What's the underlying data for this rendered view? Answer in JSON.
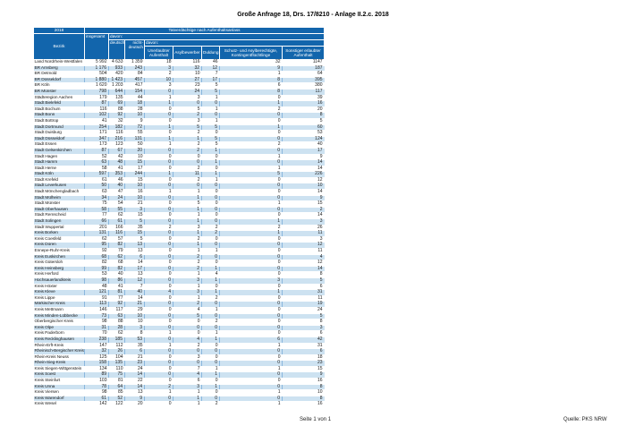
{
  "page": {
    "title": "Große Anfrage 18, Drs. 17/8210 - Anlage II.2.c. 2018",
    "footer": {
      "page_label": "Seite 1 von 1",
      "source_label": "Quelle: PKS NRW"
    }
  },
  "colors": {
    "header_blue": "#1265ac",
    "row_alt": "#cde2f1",
    "separator_blue": "#8ab7de"
  },
  "table": {
    "year": "2018",
    "bezirk_label": "Bezirk",
    "span_title": "Tatverdächtige nach Aufenthaltsanlass",
    "insgesamt_label": "insgesamt",
    "davon1_label": "davon:",
    "deutsch_label": "deutsch",
    "nichtdeutsch_label": "nicht-deutsch",
    "davon2_label": "davon:",
    "sub_headers": [
      "Unerlaubter Aufenthalt",
      "Asylbewerber",
      "Duldung",
      "Schutz- und Asylberechtigte, Kontingentflüchtlinge",
      "Sonstiger erlaubter Aufenthalt"
    ],
    "rows": [
      {
        "bezirk": "Land Nordrhein-Westfalen",
        "values": [
          "5 992",
          "4 633",
          "1 359",
          "18",
          "116",
          "46",
          "32",
          "1147"
        ]
      },
      {
        "bezirk": "BR Arnsberg",
        "values": [
          "1 176",
          "933",
          "243",
          "3",
          "32",
          "12",
          "9",
          "187"
        ]
      },
      {
        "bezirk": "BR Detmold",
        "values": [
          "504",
          "420",
          "84",
          "2",
          "10",
          "7",
          "1",
          "64"
        ]
      },
      {
        "bezirk": "BR Düsseldorf",
        "values": [
          "1 880",
          "1 423",
          "457",
          "10",
          "27",
          "17",
          "8",
          "395"
        ]
      },
      {
        "bezirk": "BR Köln",
        "values": [
          "1 620",
          "1 203",
          "417",
          "3",
          "23",
          "5",
          "6",
          "380"
        ]
      },
      {
        "bezirk": "BR Münster",
        "values": [
          "798",
          "644",
          "154",
          "0",
          "24",
          "5",
          "8",
          "117"
        ]
      },
      {
        "bezirk": "Städteregion Aachen",
        "values": [
          "179",
          "135",
          "44",
          "1",
          "3",
          "1",
          "0",
          "39"
        ]
      },
      {
        "bezirk": "Stadt Bielefeld",
        "values": [
          "87",
          "69",
          "18",
          "1",
          "0",
          "0",
          "1",
          "16"
        ]
      },
      {
        "bezirk": "Stadt Bochum",
        "values": [
          "116",
          "88",
          "28",
          "0",
          "5",
          "1",
          "2",
          "20"
        ]
      },
      {
        "bezirk": "Stadt Bonn",
        "values": [
          "102",
          "92",
          "10",
          "0",
          "2",
          "0",
          "0",
          "8"
        ]
      },
      {
        "bezirk": "Stadt Bottrop",
        "values": [
          "41",
          "32",
          "9",
          "0",
          "3",
          "1",
          "0",
          "5"
        ]
      },
      {
        "bezirk": "Stadt Dortmund",
        "values": [
          "254",
          "182",
          "72",
          "1",
          "5",
          "5",
          "1",
          "60"
        ]
      },
      {
        "bezirk": "Stadt Duisburg",
        "values": [
          "171",
          "116",
          "55",
          "0",
          "2",
          "0",
          "0",
          "53"
        ]
      },
      {
        "bezirk": "Stadt Düsseldorf",
        "values": [
          "347",
          "216",
          "131",
          "1",
          "1",
          "5",
          "0",
          "124"
        ]
      },
      {
        "bezirk": "Stadt Essen",
        "values": [
          "173",
          "123",
          "50",
          "1",
          "2",
          "5",
          "2",
          "40"
        ]
      },
      {
        "bezirk": "Stadt Gelsenkirchen",
        "values": [
          "87",
          "67",
          "20",
          "0",
          "2",
          "1",
          "0",
          "17"
        ]
      },
      {
        "bezirk": "Stadt Hagen",
        "values": [
          "52",
          "42",
          "10",
          "0",
          "0",
          "0",
          "1",
          "9"
        ]
      },
      {
        "bezirk": "Stadt Hamm",
        "values": [
          "63",
          "48",
          "15",
          "0",
          "0",
          "1",
          "0",
          "14"
        ]
      },
      {
        "bezirk": "Stadt Herne",
        "values": [
          "58",
          "41",
          "17",
          "0",
          "2",
          "0",
          "1",
          "14"
        ]
      },
      {
        "bezirk": "Stadt Köln",
        "values": [
          "597",
          "353",
          "244",
          "1",
          "11",
          "1",
          "5",
          "226"
        ]
      },
      {
        "bezirk": "Stadt Krefeld",
        "values": [
          "61",
          "46",
          "15",
          "0",
          "2",
          "1",
          "0",
          "12"
        ]
      },
      {
        "bezirk": "Stadt Leverkusen",
        "values": [
          "50",
          "40",
          "10",
          "0",
          "0",
          "0",
          "0",
          "10"
        ]
      },
      {
        "bezirk": "Stadt Mönchengladbach",
        "values": [
          "63",
          "47",
          "16",
          "1",
          "1",
          "0",
          "0",
          "14"
        ]
      },
      {
        "bezirk": "Stadt Mülheim",
        "values": [
          "34",
          "24",
          "10",
          "0",
          "1",
          "0",
          "0",
          "9"
        ]
      },
      {
        "bezirk": "Stadt Münster",
        "values": [
          "75",
          "54",
          "21",
          "0",
          "5",
          "0",
          "1",
          "15"
        ]
      },
      {
        "bezirk": "Stadt Oberhausen",
        "values": [
          "58",
          "55",
          "3",
          "0",
          "1",
          "0",
          "0",
          "2"
        ]
      },
      {
        "bezirk": "Stadt Remscheid",
        "values": [
          "77",
          "62",
          "15",
          "0",
          "1",
          "0",
          "0",
          "14"
        ]
      },
      {
        "bezirk": "Stadt Solingen",
        "values": [
          "66",
          "61",
          "5",
          "0",
          "1",
          "0",
          "1",
          "3"
        ]
      },
      {
        "bezirk": "Stadt Wuppertal",
        "values": [
          "201",
          "166",
          "35",
          "2",
          "3",
          "2",
          "2",
          "26"
        ]
      },
      {
        "bezirk": "Kreis Borken",
        "values": [
          "131",
          "116",
          "15",
          "0",
          "1",
          "2",
          "1",
          "11"
        ]
      },
      {
        "bezirk": "Kreis Coesfeld",
        "values": [
          "62",
          "57",
          "5",
          "0",
          "2",
          "0",
          "0",
          "3"
        ]
      },
      {
        "bezirk": "Kreis Düren",
        "values": [
          "95",
          "82",
          "13",
          "0",
          "1",
          "0",
          "0",
          "12"
        ]
      },
      {
        "bezirk": "Ennepe-Ruhr-Kreis",
        "values": [
          "92",
          "79",
          "13",
          "0",
          "1",
          "1",
          "0",
          "11"
        ]
      },
      {
        "bezirk": "Kreis Euskirchen",
        "values": [
          "68",
          "62",
          "6",
          "0",
          "2",
          "0",
          "0",
          "4"
        ]
      },
      {
        "bezirk": "Kreis Gütersloh",
        "values": [
          "82",
          "68",
          "14",
          "0",
          "2",
          "0",
          "0",
          "12"
        ]
      },
      {
        "bezirk": "Kreis Heinsberg",
        "values": [
          "99",
          "82",
          "17",
          "0",
          "2",
          "1",
          "0",
          "14"
        ]
      },
      {
        "bezirk": "Kreis Herford",
        "values": [
          "53",
          "40",
          "13",
          "0",
          "1",
          "4",
          "0",
          "8"
        ]
      },
      {
        "bezirk": "Hochsauerlandkreis",
        "values": [
          "98",
          "86",
          "12",
          "0",
          "3",
          "1",
          "3",
          "5"
        ]
      },
      {
        "bezirk": "Kreis Höxter",
        "values": [
          "48",
          "41",
          "7",
          "0",
          "1",
          "0",
          "0",
          "6"
        ]
      },
      {
        "bezirk": "Kreis Kleve",
        "values": [
          "121",
          "81",
          "40",
          "4",
          "3",
          "1",
          "1",
          "31"
        ]
      },
      {
        "bezirk": "Kreis Lippe",
        "values": [
          "91",
          "77",
          "14",
          "0",
          "1",
          "2",
          "0",
          "11"
        ]
      },
      {
        "bezirk": "Märkischer Kreis",
        "values": [
          "113",
          "92",
          "21",
          "0",
          "2",
          "0",
          "0",
          "19"
        ]
      },
      {
        "bezirk": "Kreis Mettmann",
        "values": [
          "146",
          "117",
          "29",
          "0",
          "4",
          "1",
          "0",
          "24"
        ]
      },
      {
        "bezirk": "Kreis Minden-Lübbecke",
        "values": [
          "73",
          "63",
          "10",
          "0",
          "5",
          "0",
          "0",
          "5"
        ]
      },
      {
        "bezirk": "Oberbergischer Kreis",
        "values": [
          "98",
          "88",
          "10",
          "0",
          "0",
          "2",
          "0",
          "8"
        ]
      },
      {
        "bezirk": "Kreis Olpe",
        "values": [
          "31",
          "28",
          "3",
          "0",
          "0",
          "0",
          "0",
          "3"
        ]
      },
      {
        "bezirk": "Kreis Paderborn",
        "values": [
          "70",
          "62",
          "8",
          "1",
          "0",
          "1",
          "0",
          "6"
        ]
      },
      {
        "bezirk": "Kreis Recklinghausen",
        "values": [
          "238",
          "185",
          "53",
          "0",
          "4",
          "1",
          "6",
          "42"
        ]
      },
      {
        "bezirk": "Rhein-Erft-Kreis",
        "values": [
          "147",
          "112",
          "35",
          "1",
          "2",
          "0",
          "1",
          "31"
        ]
      },
      {
        "bezirk": "Rheinisch-Bergischer Kreis",
        "values": [
          "32",
          "26",
          "6",
          "0",
          "0",
          "0",
          "0",
          "6"
        ]
      },
      {
        "bezirk": "Rhein-Kreis Neuss",
        "values": [
          "125",
          "104",
          "21",
          "0",
          "3",
          "0",
          "0",
          "18"
        ]
      },
      {
        "bezirk": "Rhein-Sieg-Kreis",
        "values": [
          "158",
          "135",
          "23",
          "0",
          "0",
          "0",
          "0",
          "23"
        ]
      },
      {
        "bezirk": "Kreis Siegen-Wittgenstein",
        "values": [
          "134",
          "110",
          "24",
          "0",
          "7",
          "1",
          "1",
          "15"
        ]
      },
      {
        "bezirk": "Kreis Soest",
        "values": [
          "89",
          "75",
          "14",
          "0",
          "4",
          "1",
          "0",
          "9"
        ]
      },
      {
        "bezirk": "Kreis Steinfurt",
        "values": [
          "103",
          "81",
          "22",
          "0",
          "6",
          "0",
          "0",
          "16"
        ]
      },
      {
        "bezirk": "Kreis Unna",
        "values": [
          "78",
          "64",
          "14",
          "2",
          "3",
          "1",
          "0",
          "8"
        ]
      },
      {
        "bezirk": "Kreis Viersen",
        "values": [
          "98",
          "85",
          "13",
          "1",
          "1",
          "0",
          "1",
          "10"
        ]
      },
      {
        "bezirk": "Kreis Warendorf",
        "values": [
          "61",
          "52",
          "9",
          "0",
          "1",
          "0",
          "0",
          "8"
        ]
      },
      {
        "bezirk": "Kreis Wesel",
        "values": [
          "142",
          "122",
          "20",
          "0",
          "1",
          "2",
          "1",
          "16"
        ]
      }
    ]
  }
}
